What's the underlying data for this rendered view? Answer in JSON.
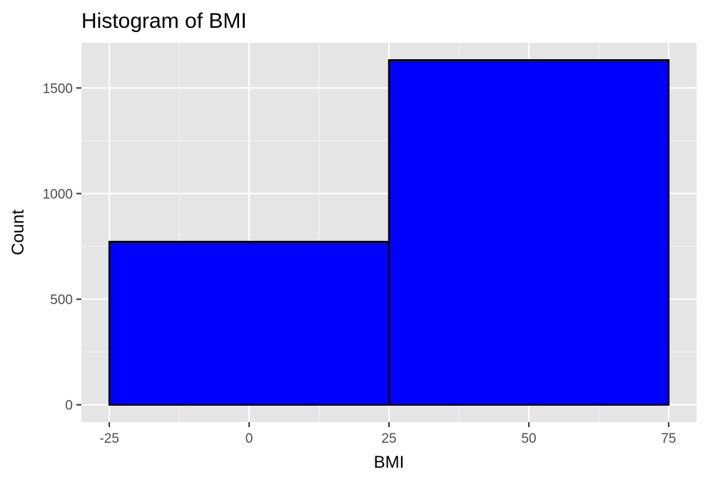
{
  "chart_data": {
    "type": "bar",
    "title": "Histogram of BMI",
    "xlabel": "BMI",
    "ylabel": "Count",
    "bins": [
      {
        "start": -25,
        "end": 25,
        "count": 772
      },
      {
        "start": 25,
        "end": 75,
        "count": 1632
      }
    ],
    "xlim": [
      -30,
      80
    ],
    "ylim": [
      -82,
      1714
    ],
    "x_ticks": [
      -25,
      0,
      25,
      50,
      75
    ],
    "x_tick_labels": [
      "-25",
      "0",
      "25",
      "50",
      "75"
    ],
    "x_minor_ticks": [
      -12.5,
      12.5,
      37.5,
      62.5
    ],
    "y_ticks": [
      0,
      500,
      1000,
      1500
    ],
    "y_tick_labels": [
      "0",
      "500",
      "1000",
      "1500"
    ],
    "y_minor_ticks": [
      250,
      750,
      1250
    ],
    "grid": true,
    "legend": "none",
    "colors": {
      "panel_background": "#e5e5e5",
      "bar_fill": "#0000ff",
      "bar_outline": "#000000"
    }
  }
}
